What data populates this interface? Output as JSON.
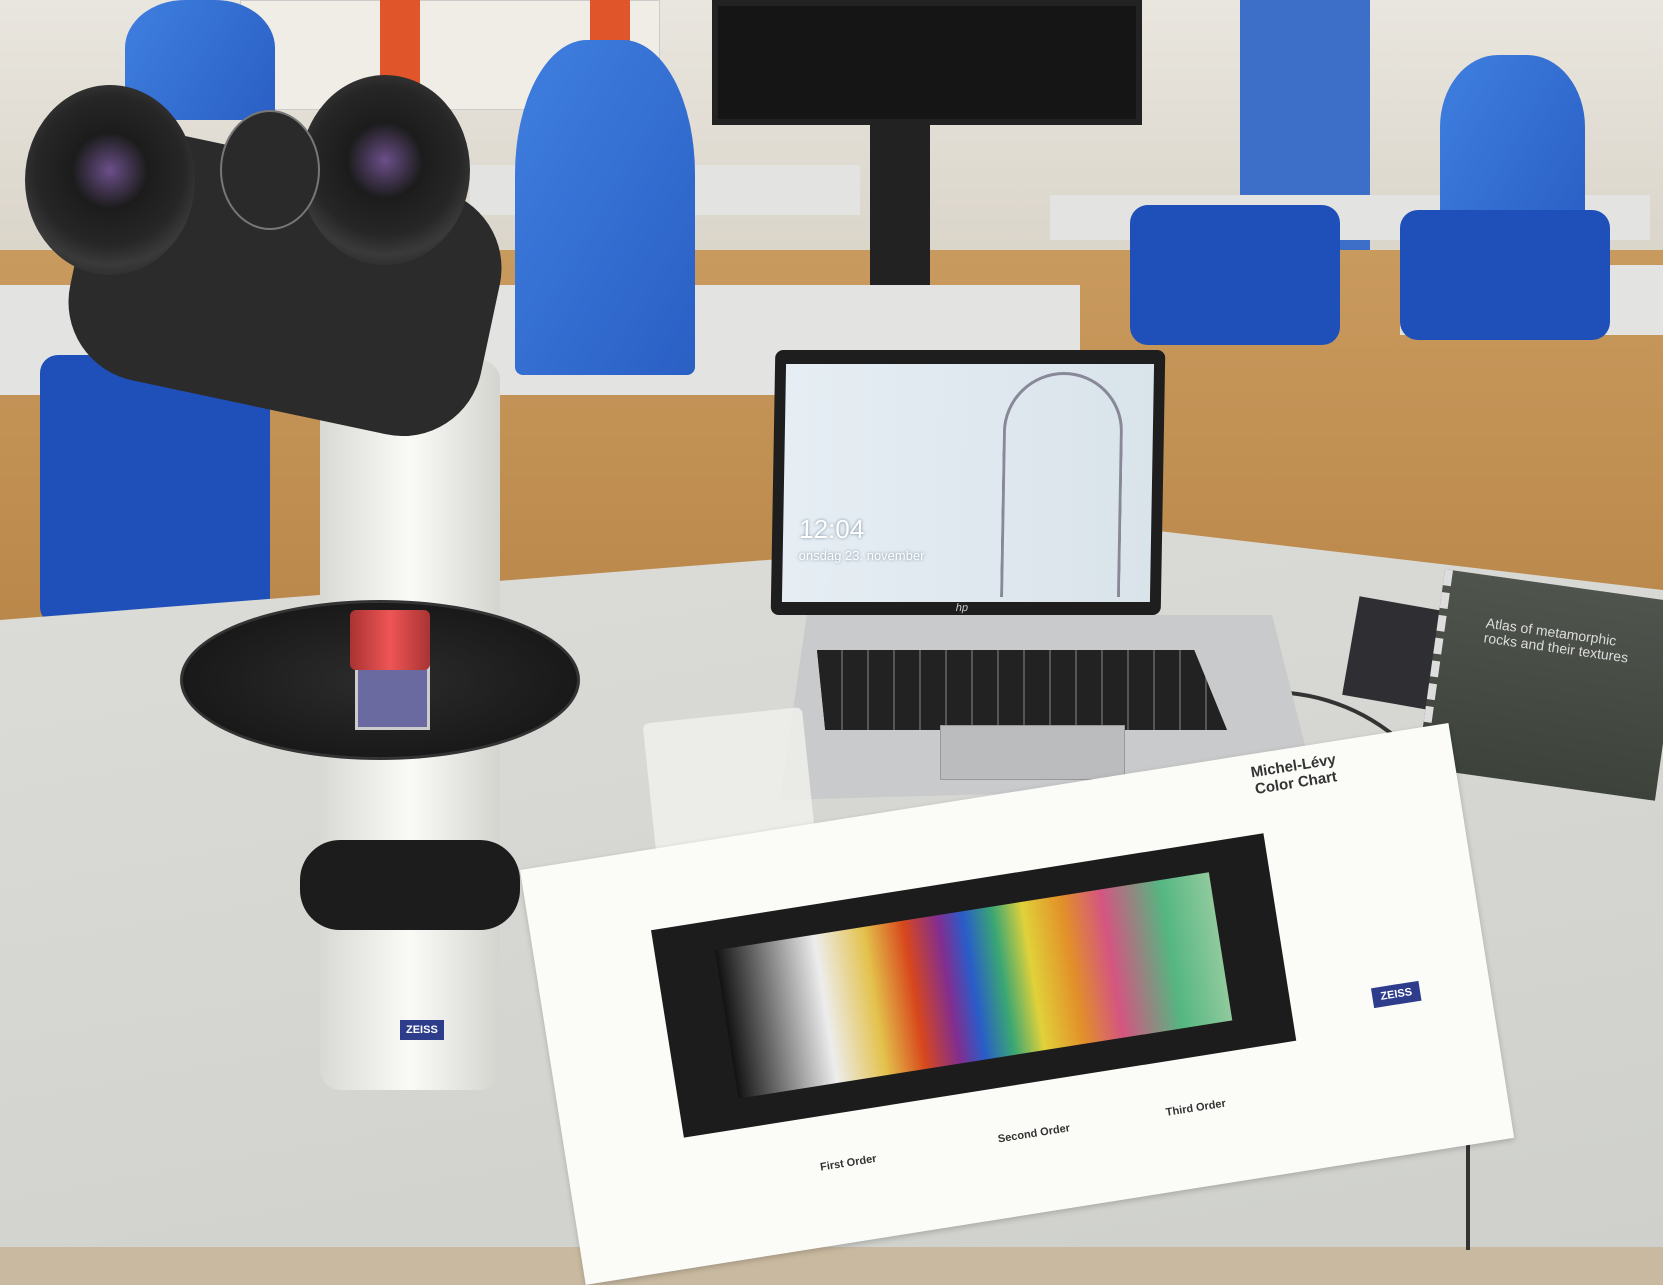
{
  "laptop": {
    "lock_time": "12:04",
    "lock_date": "onsdag 23. november",
    "brand_logo": "hp"
  },
  "chart_paper": {
    "title": "Michel-Lévy Color Chart",
    "orders": [
      "First Order",
      "Second Order",
      "Third Order"
    ],
    "logo": "ZEISS"
  },
  "microscope": {
    "logo": "ZEISS"
  },
  "book": {
    "title": "Atlas of metamorphic rocks and their textures"
  },
  "colors": {
    "chair_blue": "#1f4fb8",
    "cabinet_orange": "#e0562a",
    "zeiss_blue": "#2d3d8c"
  }
}
